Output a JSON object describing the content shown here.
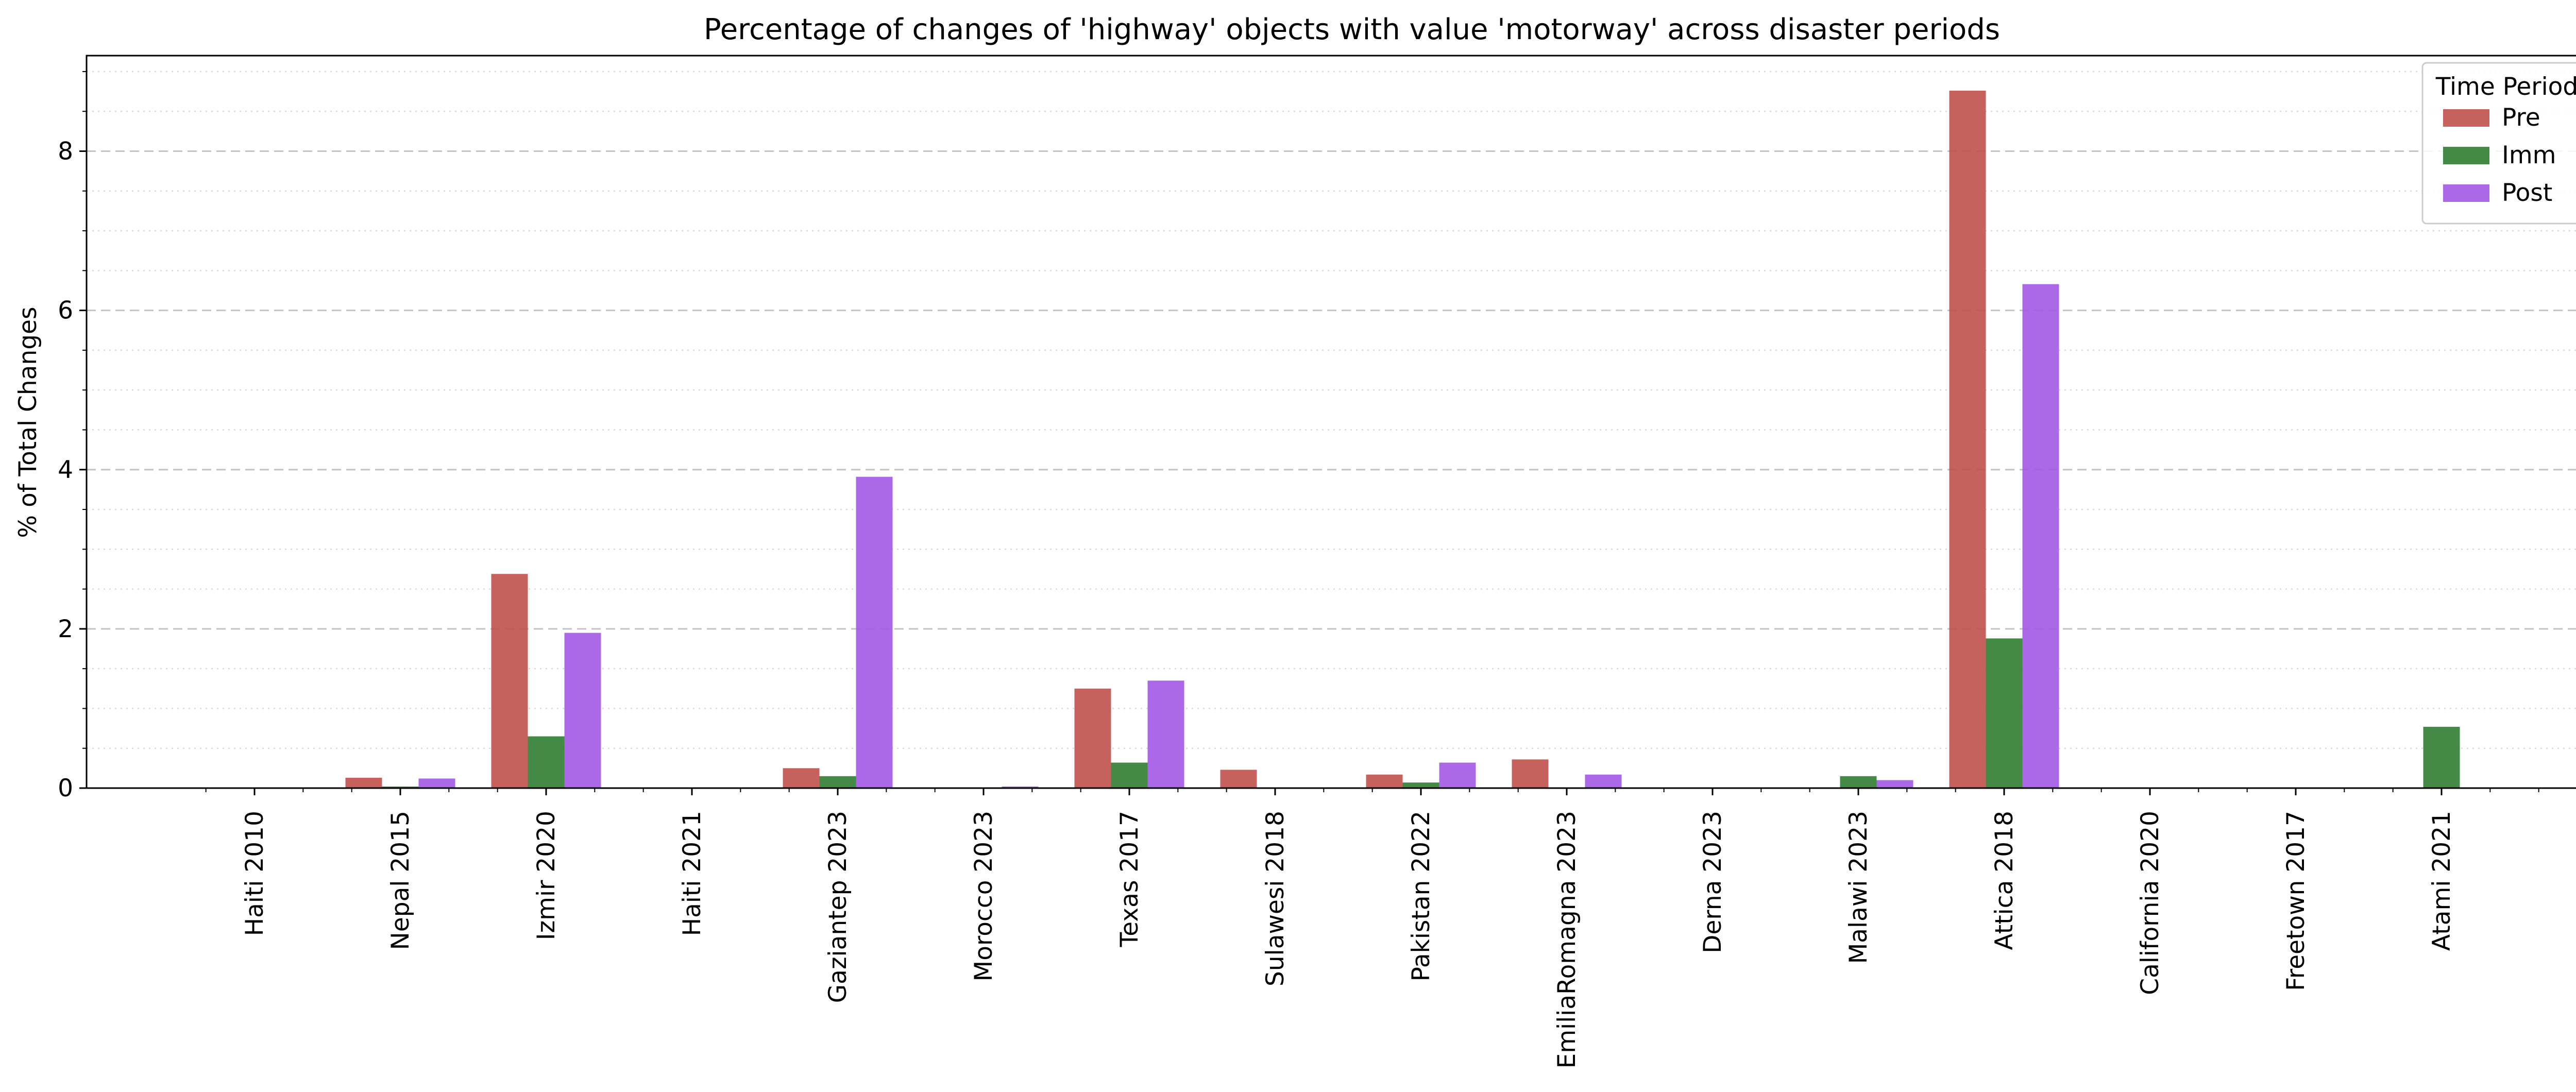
{
  "chart_data": {
    "type": "bar",
    "title": "Percentage of changes of 'highway' objects with value 'motorway' across disaster periods",
    "xlabel": "",
    "ylabel": "% of Total Changes",
    "ylim": [
      0,
      9.2
    ],
    "yticks": [
      0,
      2,
      4,
      6,
      8
    ],
    "grid": {
      "major_y": "dashed",
      "minor_y": "dotted"
    },
    "legend": {
      "title": "Time Period",
      "position": "top-right"
    },
    "categories": [
      "Haiti 2010",
      "Nepal 2015",
      "Izmir 2020",
      "Haiti 2021",
      "Gaziantep 2023",
      "Morocco 2023",
      "Texas 2017",
      "Sulawesi 2018",
      "Pakistan 2022",
      "EmiliaRomagna 2023",
      "Derna 2023",
      "Malawi 2023",
      "Attica 2018",
      "California 2020",
      "Freetown 2017",
      "Atami 2021"
    ],
    "series": [
      {
        "name": "Pre",
        "color": "#c0504d",
        "values": [
          0,
          0.13,
          2.69,
          0,
          0.25,
          0,
          1.25,
          0.23,
          0.17,
          0.36,
          0,
          0,
          8.76,
          0,
          0,
          0
        ]
      },
      {
        "name": "Imm",
        "color": "#2e7d32",
        "values": [
          0,
          0.02,
          0.65,
          0,
          0.15,
          0,
          0.32,
          0,
          0.07,
          0,
          0,
          0.15,
          1.88,
          0,
          0,
          0.77
        ]
      },
      {
        "name": "Post",
        "color": "#a259e6",
        "values": [
          0,
          0.12,
          1.95,
          0,
          3.91,
          0.02,
          1.35,
          0,
          0.32,
          0.17,
          0,
          0.1,
          6.33,
          0,
          0,
          0
        ]
      }
    ]
  }
}
